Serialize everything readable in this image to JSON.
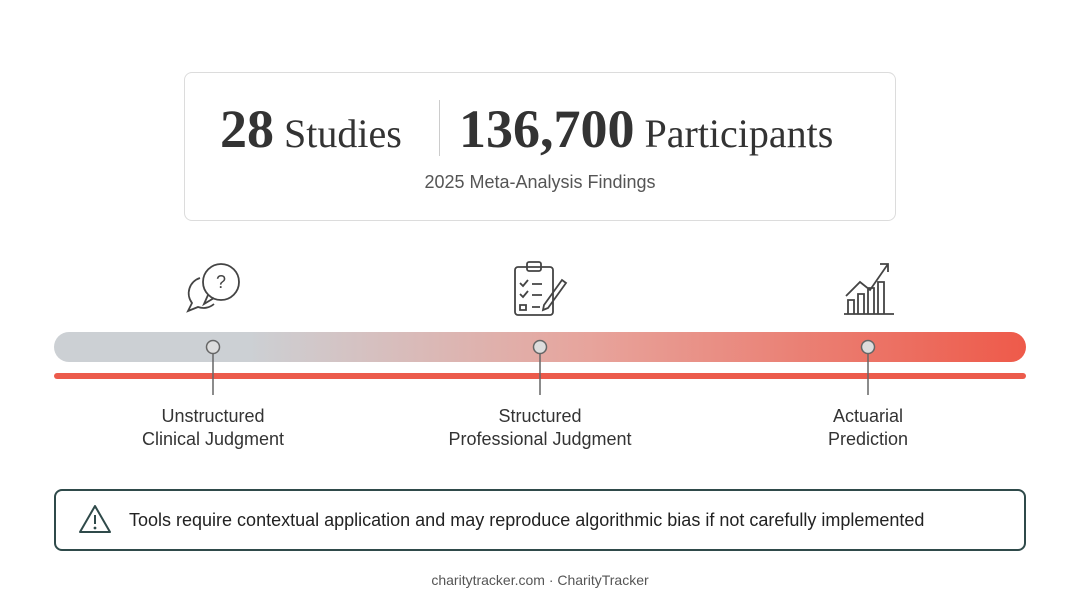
{
  "header": {
    "stats": [
      {
        "number": "28",
        "unit": "Studies"
      },
      {
        "number": "136,700",
        "unit": "Participants"
      }
    ],
    "subtitle": "2025 Meta-Analysis Findings"
  },
  "timeline": {
    "stages": [
      {
        "label_lines": [
          "Unstructured",
          "Clinical Judgment"
        ]
      },
      {
        "label_lines": [
          "Structured",
          "Professional Judgment"
        ]
      },
      {
        "label_lines": [
          "Actuarial",
          "Prediction"
        ]
      }
    ]
  },
  "warning": {
    "text": "Tools require contextual application and may reproduce algorithmic bias if not carefully implemented"
  },
  "footer": {
    "text": "charitytracker.com · CharityTracker"
  }
}
